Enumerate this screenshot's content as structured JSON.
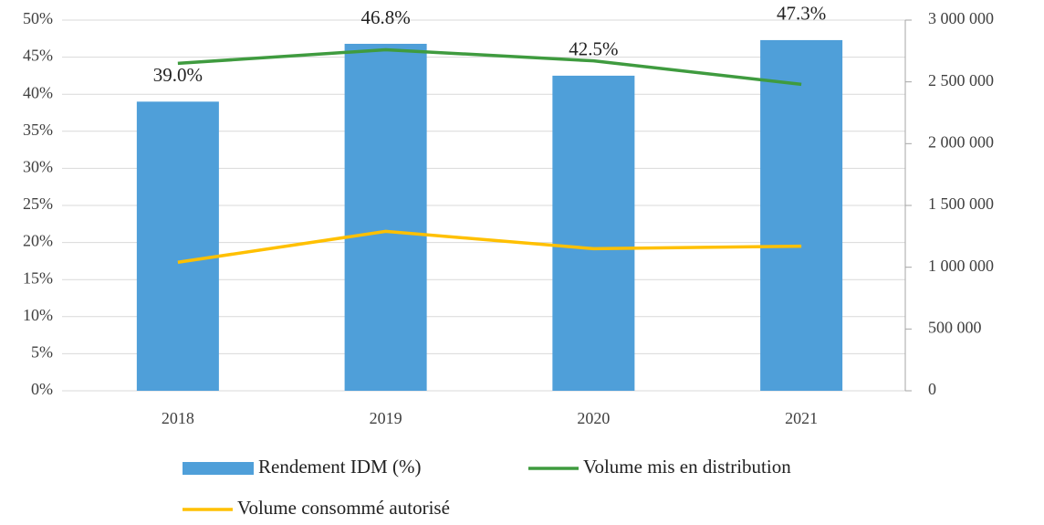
{
  "chart_data": {
    "type": "bar-line",
    "categories": [
      "2018",
      "2019",
      "2020",
      "2021"
    ],
    "series": [
      {
        "name": "Rendement IDM (%)",
        "type": "bar",
        "color": "#4f9fd9",
        "values": [
          39.0,
          46.8,
          42.5,
          47.3
        ],
        "value_labels": [
          "39.0%",
          "46.8%",
          "42.5%",
          "47.3%"
        ]
      },
      {
        "name": "Volume mis en distribution",
        "type": "line",
        "axis": "y2",
        "color": "#3f9b3f",
        "values": [
          2650000,
          2760000,
          2670000,
          2480000
        ]
      },
      {
        "name": "Volume consommé autorisé",
        "type": "line",
        "axis": "y2",
        "color": "#ffc000",
        "values": [
          1040000,
          1290000,
          1150000,
          1170000
        ]
      }
    ],
    "ylim": [
      0,
      50
    ],
    "yticks": [
      {
        "value": 0,
        "label": "0%"
      },
      {
        "value": 5,
        "label": "5%"
      },
      {
        "value": 10,
        "label": "10%"
      },
      {
        "value": 15,
        "label": "15%"
      },
      {
        "value": 20,
        "label": "20%"
      },
      {
        "value": 25,
        "label": "25%"
      },
      {
        "value": 30,
        "label": "30%"
      },
      {
        "value": 35,
        "label": "35%"
      },
      {
        "value": 40,
        "label": "40%"
      },
      {
        "value": 45,
        "label": "45%"
      },
      {
        "value": 50,
        "label": "50%"
      }
    ],
    "y2lim": [
      0,
      3000000
    ],
    "y2ticks": [
      0,
      {
        "value": 500000,
        "label": "500 000"
      },
      {
        "value": 1000000,
        "label": "1 000 000"
      },
      {
        "value": 1500000,
        "label": "1 500 000"
      },
      {
        "value": 2000000,
        "label": "2 000 000"
      },
      {
        "value": 2500000,
        "label": "2 500 000"
      },
      {
        "value": 3000000,
        "label": "3 000 000"
      }
    ],
    "grid": true,
    "legend": "bottom"
  }
}
